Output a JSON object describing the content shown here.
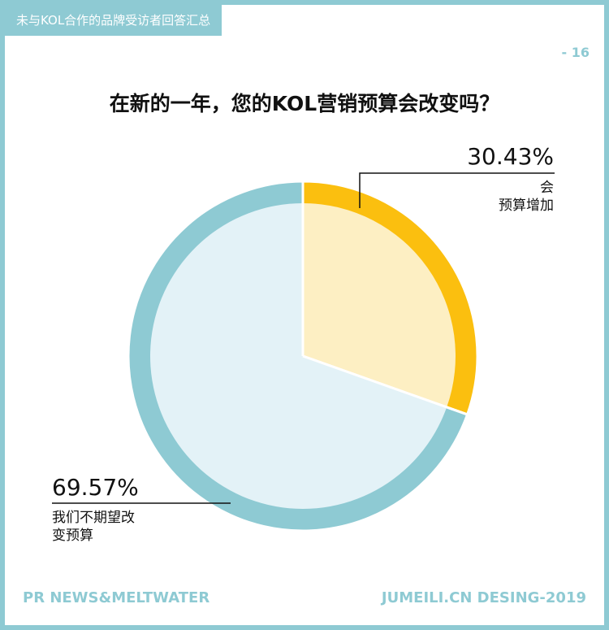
{
  "header": {
    "tag": "未与KOL合作的品牌受访者回答汇总"
  },
  "page_number": "- 16",
  "chart_data": {
    "type": "pie",
    "title": "在新的一年，您的KOL营销预算会改变吗？",
    "slices": [
      {
        "percent_label": "30.43%",
        "value": 30.43,
        "label_line1": "会",
        "label_line2": "预算增加",
        "ring_color": "#fbbf0f",
        "fill_color": "#fdefc3"
      },
      {
        "percent_label": "69.57%",
        "value": 69.57,
        "label_line1": "我们不期望改",
        "label_line2": "变预算",
        "ring_color": "#8ecad3",
        "fill_color": "#e3f2f7"
      }
    ]
  },
  "footer": {
    "left": "PR NEWS&MELTWATER",
    "right": "JUMEILI.CN DESING-2019"
  }
}
